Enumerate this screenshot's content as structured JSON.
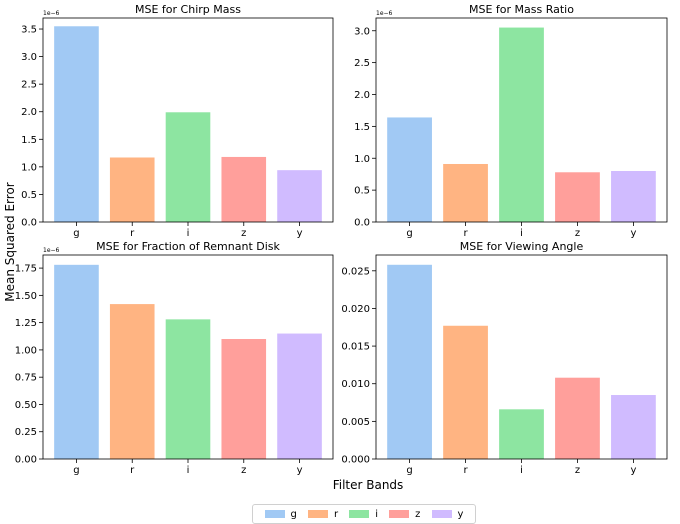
{
  "figure": {
    "ylabel": "Mean Squared Error",
    "xlabel": "Filter Bands"
  },
  "legend": [
    {
      "label": "g",
      "color": "#a1c9f4"
    },
    {
      "label": "r",
      "color": "#ffb482"
    },
    {
      "label": "i",
      "color": "#8de5a1"
    },
    {
      "label": "z",
      "color": "#ff9f9b"
    },
    {
      "label": "y",
      "color": "#d0bbff"
    }
  ],
  "chart_data": [
    {
      "type": "bar",
      "title": "MSE for Chirp Mass",
      "categories": [
        "g",
        "r",
        "i",
        "z",
        "y"
      ],
      "values": [
        3.55e-06,
        1.17e-06,
        1.99e-06,
        1.18e-06,
        9.4e-07
      ],
      "scale_label": "1e−6",
      "ylim": [
        0,
        3.7
      ],
      "yticks": [
        0,
        0.5,
        1.0,
        1.5,
        2.0,
        2.5,
        3.0,
        3.5
      ],
      "ytick_labels": [
        "0.0",
        "0.5",
        "1.0",
        "1.5",
        "2.0",
        "2.5",
        "3.0",
        "3.5"
      ],
      "grid": false
    },
    {
      "type": "bar",
      "title": "MSE for Mass Ratio",
      "categories": [
        "g",
        "r",
        "i",
        "z",
        "y"
      ],
      "values": [
        1.64e-06,
        9.1e-07,
        3.05e-06,
        7.8e-07,
        8e-07
      ],
      "scale_label": "1e−6",
      "ylim": [
        0,
        3.2
      ],
      "yticks": [
        0,
        0.5,
        1.0,
        1.5,
        2.0,
        2.5,
        3.0
      ],
      "ytick_labels": [
        "0.0",
        "0.5",
        "1.0",
        "1.5",
        "2.0",
        "2.5",
        "3.0"
      ],
      "grid": false
    },
    {
      "type": "bar",
      "title": "MSE for Fraction of Remnant Disk",
      "categories": [
        "g",
        "r",
        "i",
        "z",
        "y"
      ],
      "values": [
        1.78e-06,
        1.42e-06,
        1.28e-06,
        1.1e-06,
        1.15e-06
      ],
      "scale_label": "1e−6",
      "ylim": [
        0,
        1.87
      ],
      "yticks": [
        0,
        0.25,
        0.5,
        0.75,
        1.0,
        1.25,
        1.5,
        1.75
      ],
      "ytick_labels": [
        "0.00",
        "0.25",
        "0.50",
        "0.75",
        "1.00",
        "1.25",
        "1.50",
        "1.75"
      ],
      "grid": false
    },
    {
      "type": "bar",
      "title": "MSE for Viewing Angle",
      "categories": [
        "g",
        "r",
        "i",
        "z",
        "y"
      ],
      "values": [
        0.0258,
        0.0177,
        0.0066,
        0.0108,
        0.0085
      ],
      "scale_label": "",
      "ylim": [
        0,
        0.0271
      ],
      "yticks": [
        0,
        0.005,
        0.01,
        0.015,
        0.02,
        0.025
      ],
      "ytick_labels": [
        "0.000",
        "0.005",
        "0.010",
        "0.015",
        "0.020",
        "0.025"
      ],
      "grid": false
    }
  ]
}
